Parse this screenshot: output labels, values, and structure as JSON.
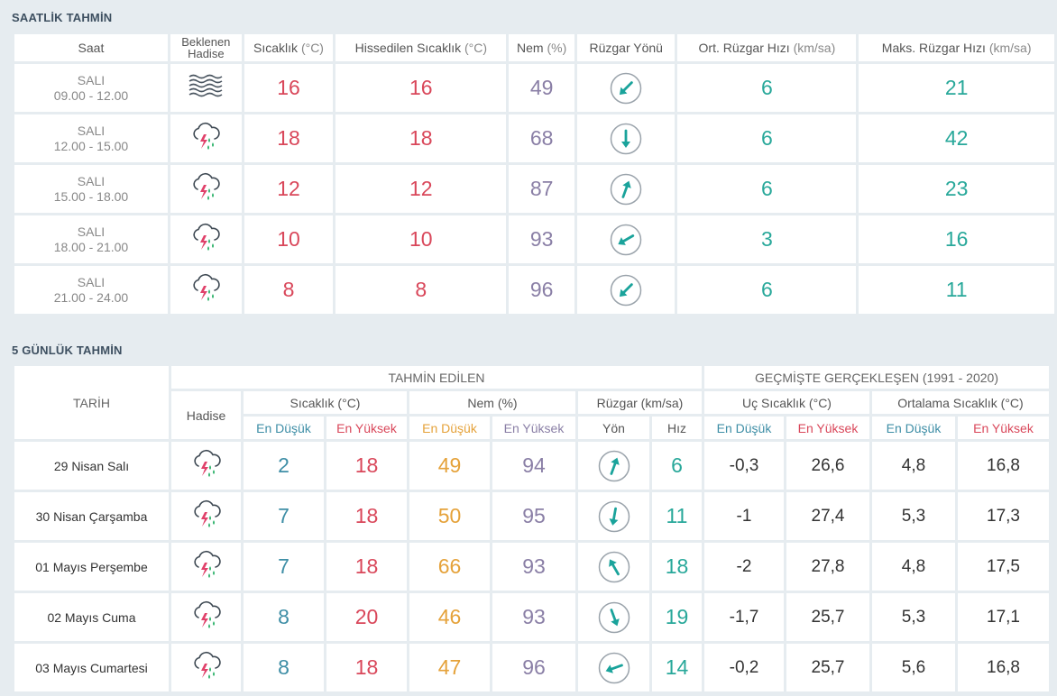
{
  "hourly": {
    "title": "SAATLİK TAHMİN",
    "headers": {
      "saat": "Saat",
      "hadise_1": "Beklenen",
      "hadise_2": "Hadise",
      "temp": "Sıcaklık",
      "temp_unit": "(°C)",
      "feels": "Hissedilen Sıcaklık",
      "feels_unit": "(°C)",
      "hum": "Nem",
      "hum_unit": "(%)",
      "wdir": "Rüzgar Yönü",
      "wavg": "Ort. Rüzgar Hızı",
      "wavg_unit": "(km/sa)",
      "wmax": "Maks. Rüzgar Hızı",
      "wmax_unit": "(km/sa)"
    },
    "rows": [
      {
        "day": "SALI",
        "time": "09.00 - 12.00",
        "icon": "fog-icon",
        "temp": "16",
        "feels": "16",
        "hum": "49",
        "dir_deg": 225,
        "wavg": "6",
        "wmax": "21"
      },
      {
        "day": "SALI",
        "time": "12.00 - 15.00",
        "icon": "thunderstorm-rain-icon",
        "temp": "18",
        "feels": "18",
        "hum": "68",
        "dir_deg": 180,
        "wavg": "6",
        "wmax": "42"
      },
      {
        "day": "SALI",
        "time": "15.00 - 18.00",
        "icon": "thunderstorm-rain-icon",
        "temp": "12",
        "feels": "12",
        "hum": "87",
        "dir_deg": 20,
        "wavg": "6",
        "wmax": "23"
      },
      {
        "day": "SALI",
        "time": "18.00 - 21.00",
        "icon": "thunderstorm-rain-icon",
        "temp": "10",
        "feels": "10",
        "hum": "93",
        "dir_deg": 240,
        "wavg": "3",
        "wmax": "16"
      },
      {
        "day": "SALI",
        "time": "21.00 - 24.00",
        "icon": "thunderstorm-rain-icon",
        "temp": "8",
        "feels": "8",
        "hum": "96",
        "dir_deg": 225,
        "wavg": "6",
        "wmax": "11"
      }
    ]
  },
  "daily": {
    "title": "5 GÜNLÜK TAHMİN",
    "headers": {
      "tarih": "TARİH",
      "tahmin": "TAHMİN EDİLEN",
      "gecmis": "GEÇMİŞTE GERÇEKLEŞEN (1991 - 2020)",
      "hadise": "Hadise",
      "temp": "Sıcaklık (°C)",
      "hum": "Nem (%)",
      "wind": "Rüzgar (km/sa)",
      "uc": "Uç Sıcaklık (°C)",
      "ort": "Ortalama Sıcaklık (°C)",
      "low": "En Düşük",
      "high": "En Yüksek",
      "yon": "Yön",
      "hiz": "Hız"
    },
    "rows": [
      {
        "date": "29 Nisan Salı",
        "icon": "thunderstorm-rain-icon",
        "tmin": "2",
        "tmax": "18",
        "hmin": "49",
        "hmax": "94",
        "dir_deg": 20,
        "speed": "6",
        "ucmin": "-0,3",
        "ucmax": "26,6",
        "ortmin": "4,8",
        "ortmax": "16,8"
      },
      {
        "date": "30 Nisan Çarşamba",
        "icon": "thunderstorm-rain-icon",
        "tmin": "7",
        "tmax": "18",
        "hmin": "50",
        "hmax": "95",
        "dir_deg": 190,
        "speed": "11",
        "ucmin": "-1",
        "ucmax": "27,4",
        "ortmin": "5,3",
        "ortmax": "17,3"
      },
      {
        "date": "01 Mayıs Perşembe",
        "icon": "thunderstorm-rain-icon",
        "tmin": "7",
        "tmax": "18",
        "hmin": "66",
        "hmax": "93",
        "dir_deg": 330,
        "speed": "18",
        "ucmin": "-2",
        "ucmax": "27,8",
        "ortmin": "4,8",
        "ortmax": "17,5"
      },
      {
        "date": "02 Mayıs Cuma",
        "icon": "thunderstorm-rain-icon",
        "tmin": "8",
        "tmax": "20",
        "hmin": "46",
        "hmax": "93",
        "dir_deg": 160,
        "speed": "19",
        "ucmin": "-1,7",
        "ucmax": "25,7",
        "ortmin": "5,3",
        "ortmax": "17,1"
      },
      {
        "date": "03 Mayıs Cumartesi",
        "icon": "thunderstorm-rain-icon",
        "tmin": "8",
        "tmax": "18",
        "hmin": "47",
        "hmax": "96",
        "dir_deg": 250,
        "speed": "14",
        "ucmin": "-0,2",
        "ucmax": "25,7",
        "ortmin": "5,6",
        "ortmax": "16,8"
      }
    ]
  }
}
